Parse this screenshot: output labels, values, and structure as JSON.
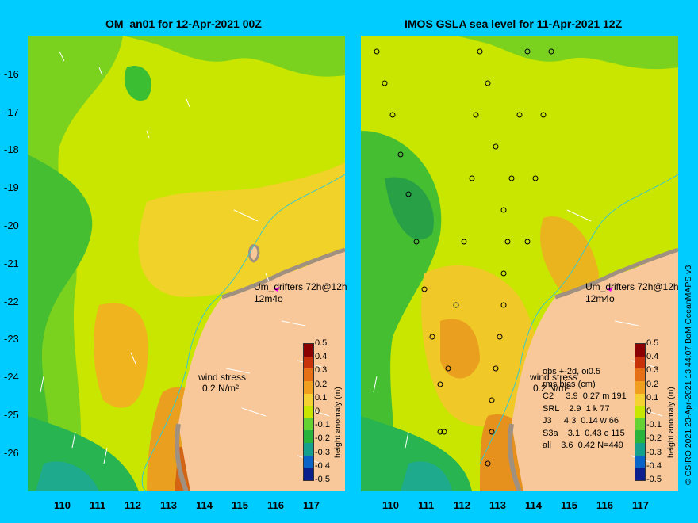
{
  "panels": [
    {
      "title": "OM_an01 for 12-Apr-2021 00Z",
      "drifter_label": "Um_drifters 72h@12h",
      "drifter_sub": "12m4o",
      "wind_label": "wind stress",
      "wind_unit": "0.2 N/m²"
    },
    {
      "title": "IMOS GSLA sea level  for 11-Apr-2021 12Z",
      "drifter_label": "Um_drifters 72h@12h",
      "drifter_sub": "12m4o",
      "wind_label": "wind stress",
      "wind_unit": "0.2 N/m²",
      "stats": [
        "obs +-2d, oi0.5",
        "rms bias (cm)",
        "C2     3.9  0.27 m 191",
        "SRL    2.9  1 k 77",
        "J3     4.3  0.14 w 66",
        "S3a    3.1  0.43 c 115",
        "all    3.6  0.42 N=449"
      ]
    }
  ],
  "axes": {
    "lat_ticks": [
      "-16",
      "-17",
      "-18",
      "-19",
      "-20",
      "-21",
      "-22",
      "-23",
      "-24",
      "-25",
      "-26"
    ],
    "lon_ticks": [
      "110",
      "111",
      "112",
      "113",
      "114",
      "115",
      "116",
      "117"
    ],
    "lon_range": [
      109.2,
      118.0
    ],
    "lat_range": [
      -27.0,
      -15.0
    ]
  },
  "colorbar": {
    "title": "height anomaly (m)",
    "ticks": [
      "0.5",
      "0.4",
      "0.3",
      "0.2",
      "0.1",
      "0",
      "-0.1",
      "-0.2",
      "-0.3",
      "-0.4",
      "-0.5"
    ],
    "colors": [
      "#8b0000",
      "#c8320a",
      "#e66e14",
      "#f0a01e",
      "#f5d232",
      "#c8e600",
      "#64d232",
      "#28b43c",
      "#14a08c",
      "#0a64c8",
      "#0a1e8c"
    ]
  },
  "credit": "© CSIRO 2021   23-Apr-2021 13:44:07 BoM OceanMAPS v3",
  "colors": {
    "background": "#00ccff",
    "land": "#f8c89a",
    "coast": "#a09080"
  }
}
